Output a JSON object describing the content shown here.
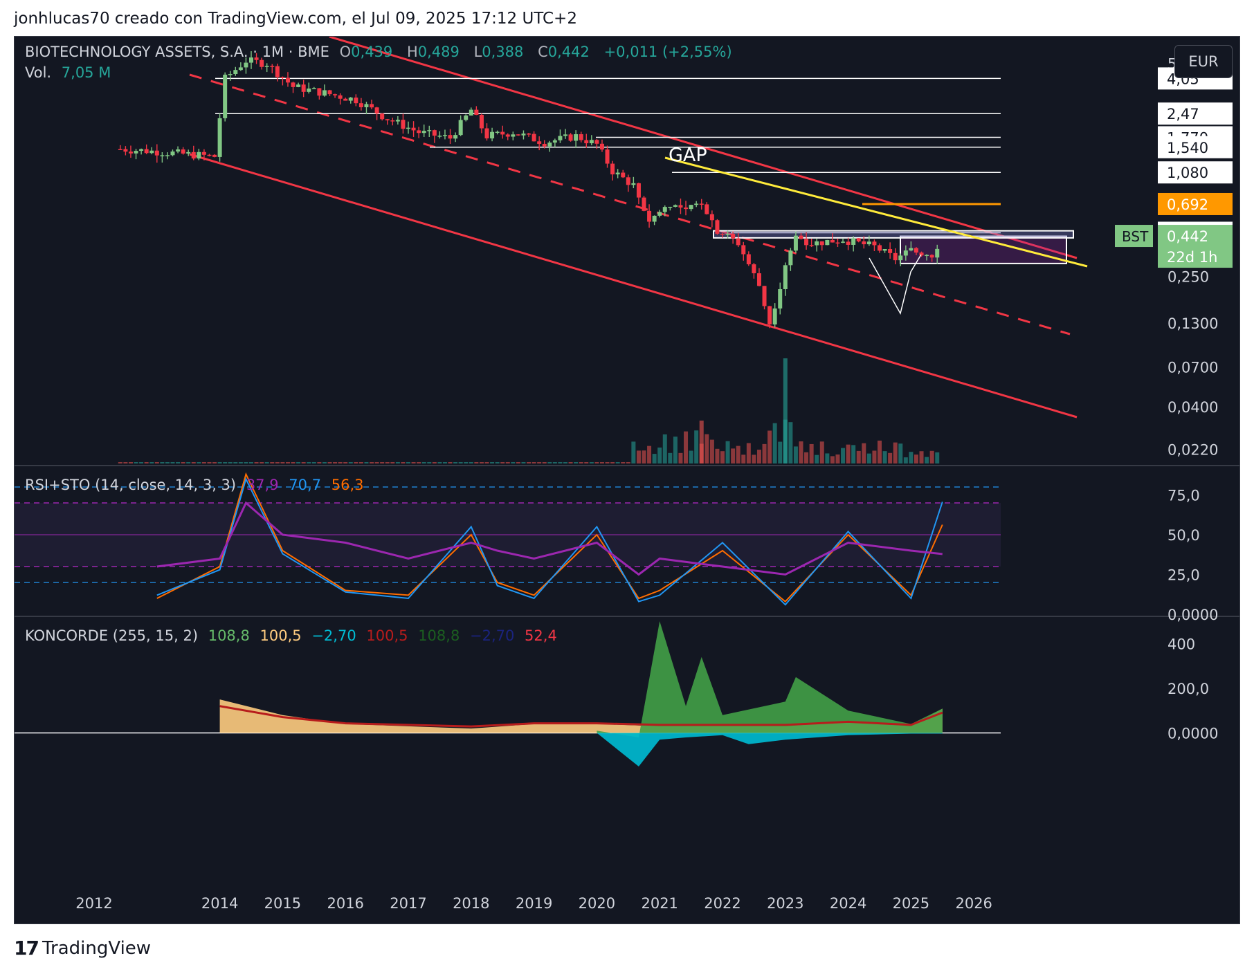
{
  "header": {
    "attribution": "jonhlucas70 creado con TradingView.com, el Jul 09, 2025 17:12 UTC+2"
  },
  "legend": {
    "symbol": "BIOTECHNOLOGY ASSETS, S.A. · 1M · BME",
    "open_label": "O",
    "open": "0,439",
    "high_label": "H",
    "high": "0,489",
    "low_label": "L",
    "low": "0,388",
    "close_label": "C",
    "close": "0,442",
    "change": "+0,011 (+2,55%)",
    "vol_label": "Vol.",
    "vol": "7,05 M"
  },
  "currency_button": "EUR",
  "price_axis": {
    "ticks": [
      "5,00",
      "0,250",
      "0,1300",
      "0,0700",
      "0,0400",
      "0,0220"
    ],
    "level_labels": [
      "4,05",
      "2,47",
      "1,770",
      "1,540",
      "1,080",
      "0,692",
      "0,462"
    ],
    "current_price": "0,442",
    "countdown": "22d 1h",
    "symbol_tag": "BST"
  },
  "annotation_gap": "GAP",
  "rsi": {
    "title": "RSI+STO (14, close, 14, 3, 3)",
    "v1": "37,9",
    "v2": "70,7",
    "v3": "56,3",
    "ticks": [
      "75,0",
      "50,0",
      "25,0",
      "0,0000"
    ]
  },
  "koncorde": {
    "title": "KONCORDE (255, 15, 2)",
    "values": [
      "108,8",
      "100,5",
      "−2,70",
      "100,5",
      "108,8",
      "−2,70",
      "52,4"
    ],
    "ticks": [
      "400",
      "200,0",
      "0,0000"
    ]
  },
  "time_axis": [
    "2012",
    "2014",
    "2015",
    "2016",
    "2017",
    "2018",
    "2019",
    "2020",
    "2021",
    "2022",
    "2023",
    "2024",
    "2025",
    "2026"
  ],
  "footer": {
    "brand": "TradingView",
    "logo_text": "17"
  },
  "colors": {
    "bg": "#131722",
    "up": "#81c784",
    "down": "#f23645",
    "channel": "#f23645",
    "trend": "#ffeb3b",
    "orange": "#ff9800",
    "rsi": "#9c27b0",
    "k": "#2196f3",
    "d": "#ff6d00",
    "volUp": "#26a69a",
    "volDown": "#ef5350"
  },
  "chart_data": [
    {
      "type": "candlestick",
      "title": "BIOTECHNOLOGY ASSETS, S.A. · 1M · BME",
      "scale": "log",
      "ylim": [
        0.018,
        6.0
      ],
      "ohlc_last": {
        "open": 0.439,
        "high": 0.489,
        "low": 0.388,
        "close": 0.442
      },
      "series": [
        {
          "name": "price",
          "x": [
            "2012-06",
            "2013-01",
            "2013-06",
            "2013-12",
            "2014-02",
            "2014-06",
            "2014-10",
            "2015-03",
            "2015-09",
            "2016-03",
            "2016-09",
            "2017-03",
            "2017-09",
            "2018-01",
            "2018-04",
            "2018-09",
            "2019-03",
            "2019-09",
            "2020-01",
            "2020-04",
            "2020-08",
            "2020-11",
            "2021-03",
            "2021-06",
            "2021-09",
            "2021-12",
            "2022-04",
            "2022-08",
            "2022-10",
            "2022-12",
            "2023-01",
            "2023-03",
            "2023-06",
            "2023-12",
            "2024-06",
            "2024-10",
            "2025-01",
            "2025-05",
            "2025-07"
          ],
          "y": [
            1.5,
            1.45,
            1.4,
            1.35,
            4.05,
            5.2,
            5.0,
            3.6,
            3.3,
            3.0,
            2.3,
            1.9,
            1.75,
            2.6,
            1.8,
            1.9,
            1.65,
            1.8,
            1.6,
            1.1,
            0.9,
            0.55,
            0.7,
            0.62,
            0.72,
            0.48,
            0.4,
            0.22,
            0.13,
            0.22,
            0.3,
            0.44,
            0.4,
            0.42,
            0.38,
            0.32,
            0.36,
            0.34,
            0.442
          ]
        }
      ],
      "levels": [
        4.05,
        2.47,
        1.77,
        1.54,
        1.08,
        0.692,
        0.462
      ],
      "annotations": [
        "GAP"
      ]
    },
    {
      "type": "line",
      "title": "RSI+STO (14, close, 14, 3, 3)",
      "ylim": [
        0,
        90
      ],
      "series": [
        {
          "x": [
            "2013",
            "2014",
            "2014-06",
            "2015",
            "2016",
            "2017",
            "2018",
            "2018-06",
            "2019",
            "2020",
            "2020-09",
            "2021",
            "2022",
            "2023",
            "2024",
            "2025",
            "2025-07"
          ],
          "values": [
            10,
            30,
            88,
            40,
            15,
            12,
            50,
            20,
            12,
            50,
            10,
            15,
            40,
            8,
            50,
            12,
            56.3
          ]
        },
        {
          "x": [
            "2013",
            "2014",
            "2014-06",
            "2015",
            "2016",
            "2017",
            "2018",
            "2018-06",
            "2019",
            "2020",
            "2020-09",
            "2021",
            "2022",
            "2023",
            "2024",
            "2025",
            "2025-07"
          ],
          "values": [
            12,
            28,
            85,
            38,
            14,
            10,
            55,
            18,
            10,
            55,
            8,
            12,
            45,
            6,
            52,
            10,
            70.7
          ]
        },
        {
          "x": [
            "2013",
            "2014",
            "2014-06",
            "2015",
            "2016",
            "2017",
            "2018",
            "2018-06",
            "2019",
            "2020",
            "2020-09",
            "2021",
            "2022",
            "2023",
            "2024",
            "2025",
            "2025-07"
          ],
          "values": [
            30,
            35,
            70,
            50,
            45,
            35,
            45,
            40,
            35,
            45,
            25,
            35,
            30,
            25,
            45,
            40,
            37.9
          ]
        }
      ]
    },
    {
      "type": "area",
      "title": "KONCORDE (255, 15, 2)",
      "ylim": [
        -150,
        500
      ],
      "series": [
        {
          "x": [
            "2014-01",
            "2015",
            "2016",
            "2017",
            "2018",
            "2019",
            "2020",
            "2021",
            "2022",
            "2023",
            "2024",
            "2025",
            "2025-07"
          ],
          "values": [
            150,
            80,
            40,
            30,
            20,
            40,
            40,
            30,
            30,
            30,
            50,
            30,
            108.8
          ]
        },
        {
          "x": [
            "2020",
            "2020-09",
            "2021-01",
            "2021-06",
            "2021-09",
            "2022",
            "2023-01",
            "2023-03",
            "2024",
            "2025",
            "2025-07"
          ],
          "values": [
            10,
            -20,
            500,
            120,
            340,
            80,
            140,
            250,
            100,
            40,
            108.8
          ]
        },
        {
          "x": [
            "2020",
            "2020-09",
            "2021",
            "2021-06",
            "2022",
            "2022-06",
            "2023",
            "2024",
            "2025",
            "2025-07"
          ],
          "values": [
            0,
            -150,
            -30,
            -20,
            -10,
            -50,
            -30,
            -10,
            -3,
            -2.7
          ]
        }
      ]
    }
  ]
}
